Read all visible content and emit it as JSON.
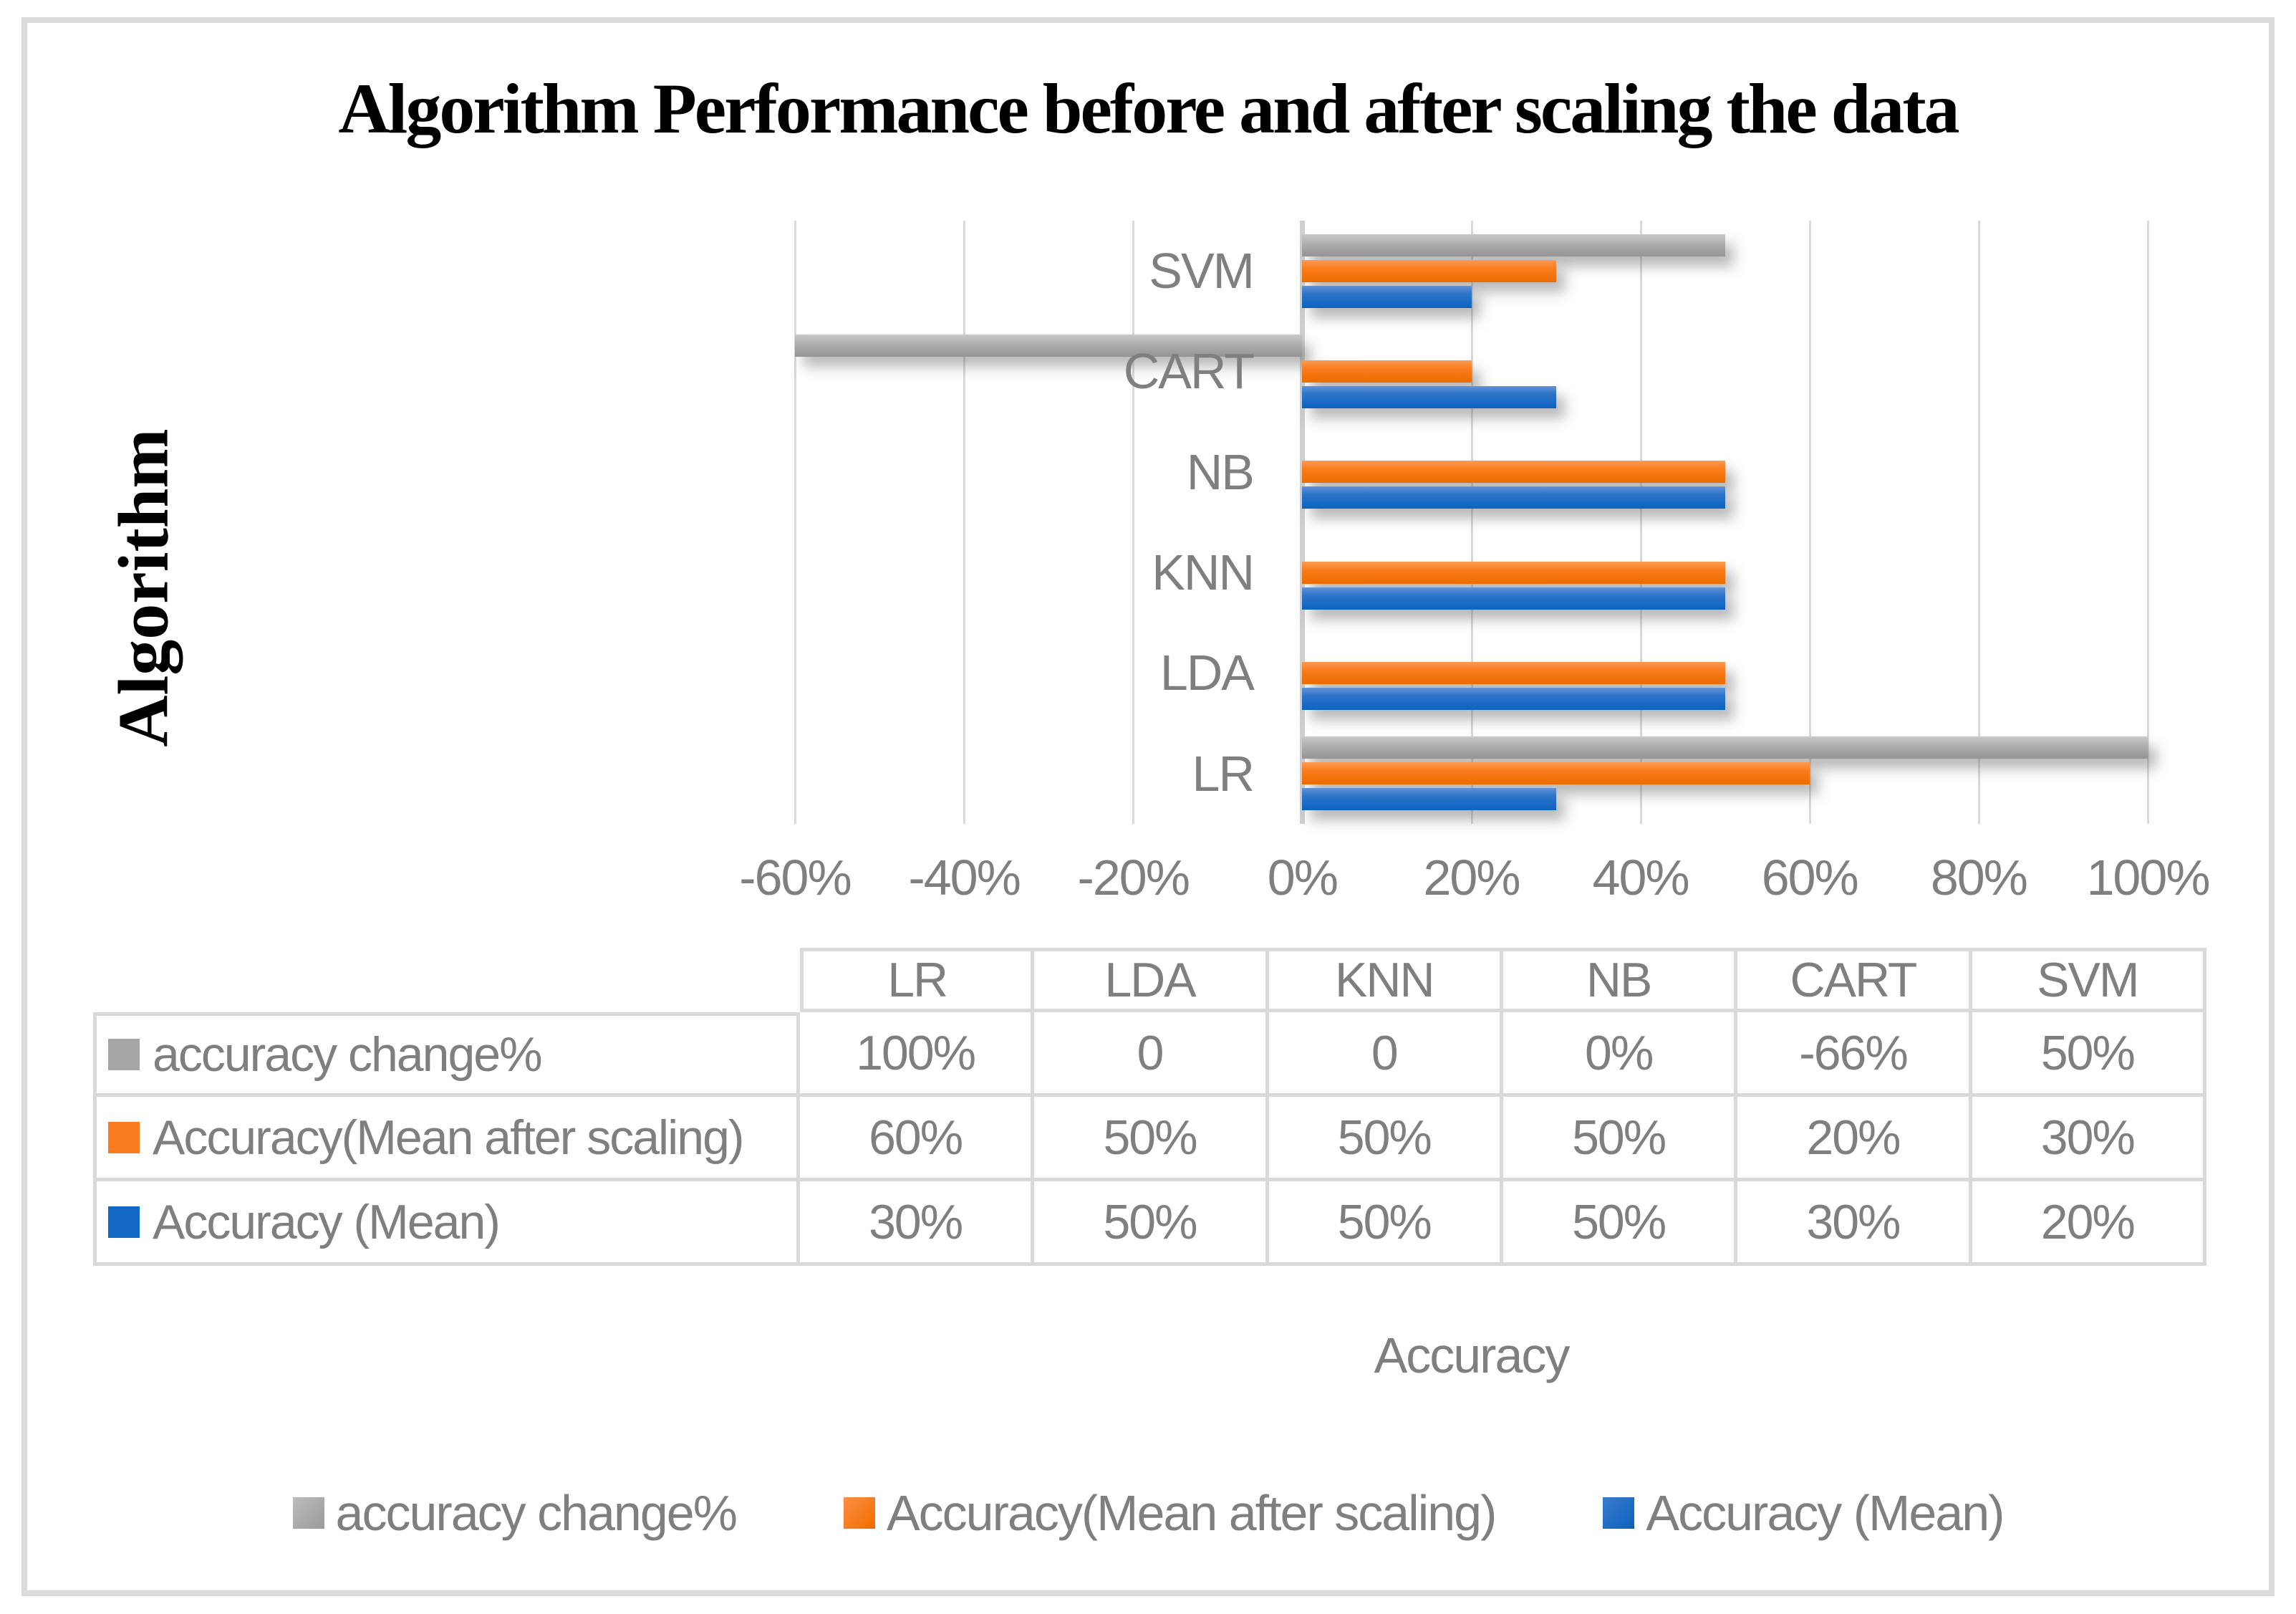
{
  "chart_data": {
    "type": "bar",
    "orientation": "horizontal",
    "title": "Algorithm Performance before and after scaling the data",
    "xlabel": "Accuracy",
    "ylabel": "Algorithm",
    "categories": [
      "SVM",
      "CART",
      "NB",
      "KNN",
      "LDA",
      "LR"
    ],
    "series": [
      {
        "name": "accuracy change%",
        "color": "#a6a6a6",
        "values": [
          50,
          -66,
          0,
          0,
          0,
          100
        ]
      },
      {
        "name": "Accuracy(Mean after scaling)",
        "color": "#f97d1f",
        "values": [
          30,
          20,
          50,
          50,
          50,
          60
        ]
      },
      {
        "name": "Accuracy (Mean)",
        "color": "#1268c2",
        "values": [
          20,
          30,
          50,
          50,
          50,
          30
        ]
      }
    ],
    "axis": {
      "min": -60,
      "max": 100,
      "ticks": [
        -60,
        -40,
        -20,
        0,
        20,
        40,
        60,
        80,
        100
      ],
      "tick_suffix": "%",
      "gridlines": true,
      "clip_bars_to_axis": true
    },
    "legend_position": "bottom"
  },
  "table": {
    "headers": [
      "LR",
      "LDA",
      "KNN",
      "NB",
      "CART",
      "SVM"
    ],
    "rows": [
      {
        "label": "accuracy change%",
        "series_color": "#a6a6a6",
        "values": [
          "100%",
          "0",
          "0",
          "0%",
          "-66%",
          "50%"
        ]
      },
      {
        "label": "Accuracy(Mean after scaling)",
        "series_color": "#f97d1f",
        "values": [
          "60%",
          "50%",
          "50%",
          "50%",
          "20%",
          "30%"
        ]
      },
      {
        "label": "Accuracy (Mean)",
        "series_color": "#1268c2",
        "values": [
          "30%",
          "50%",
          "50%",
          "50%",
          "30%",
          "20%"
        ]
      }
    ]
  },
  "colors": {
    "text_gray": "#7f7f7f",
    "grid_gray": "#d9d9d9",
    "frame_gray": "#dbdbdb",
    "series_gray": "#a6a6a6",
    "series_orange": "#f97d1f",
    "series_blue": "#1268c2"
  }
}
